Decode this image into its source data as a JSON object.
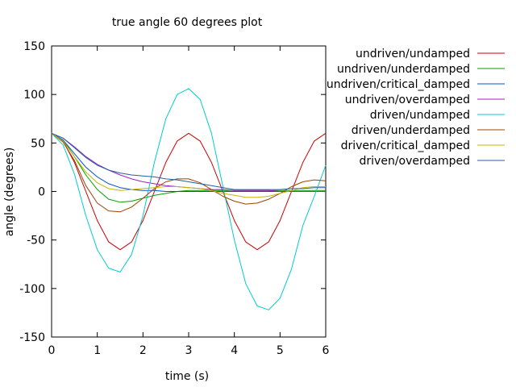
{
  "chart_data": {
    "type": "line",
    "title": "true angle 60 degrees plot",
    "xlabel": "time (s)",
    "ylabel": "angle (degrees)",
    "xlim": [
      0,
      6
    ],
    "ylim": [
      -150,
      150
    ],
    "xticks": [
      0,
      1,
      2,
      3,
      4,
      5,
      6
    ],
    "yticks": [
      -150,
      -100,
      -50,
      0,
      50,
      100,
      150
    ],
    "grid": false,
    "legend_position": "right",
    "series": [
      {
        "name": "undriven/undamped",
        "color": "#cc0000",
        "x": [
          0,
          0.25,
          0.5,
          0.75,
          1,
          1.25,
          1.5,
          1.75,
          2,
          2.25,
          2.5,
          2.75,
          3,
          3.25,
          3.5,
          3.75,
          4,
          4.25,
          4.5,
          4.75,
          5,
          5.25,
          5.5,
          5.75,
          6
        ],
        "y": [
          60,
          52,
          30,
          0,
          -30,
          -52,
          -60,
          -52,
          -30,
          0,
          30,
          52,
          60,
          52,
          30,
          0,
          -30,
          -52,
          -60,
          -52,
          -30,
          0,
          30,
          52,
          60
        ]
      },
      {
        "name": "undriven/underdamped",
        "color": "#00a000",
        "x": [
          0,
          0.25,
          0.5,
          0.75,
          1,
          1.25,
          1.5,
          1.75,
          2,
          2.25,
          2.5,
          2.75,
          3,
          3.25,
          3.5,
          3.75,
          4,
          4.25,
          4.5,
          4.75,
          5,
          5.25,
          5.5,
          5.75,
          6
        ],
        "y": [
          60,
          53,
          36,
          17,
          2,
          -8,
          -11,
          -10,
          -7,
          -4,
          -2,
          0,
          1,
          1,
          1,
          1,
          1,
          1,
          1,
          1,
          1,
          1,
          1,
          1,
          1
        ]
      },
      {
        "name": "undriven/critical_damped",
        "color": "#0050cc",
        "x": [
          0,
          0.25,
          0.5,
          0.75,
          1,
          1.25,
          1.5,
          1.75,
          2,
          2.25,
          2.5,
          2.75,
          3,
          3.25,
          3.5,
          3.75,
          4,
          4.25,
          4.5,
          4.75,
          5,
          5.25,
          5.5,
          5.75,
          6
        ],
        "y": [
          60,
          53,
          39,
          25,
          15,
          8,
          4,
          2,
          1,
          1,
          0,
          0,
          0,
          0,
          0,
          0,
          0,
          0,
          0,
          0,
          0,
          0,
          0,
          0,
          0
        ]
      },
      {
        "name": "undriven/overdamped",
        "color": "#a020c0",
        "x": [
          0,
          0.25,
          0.5,
          0.75,
          1,
          1.25,
          1.5,
          1.75,
          2,
          2.25,
          2.5,
          2.75,
          3,
          3.25,
          3.5,
          3.75,
          4,
          4.25,
          4.5,
          4.75,
          5,
          5.25,
          5.5,
          5.75,
          6
        ],
        "y": [
          60,
          55,
          46,
          36,
          28,
          22,
          17,
          13,
          10,
          8,
          6,
          5,
          4,
          3,
          2,
          2,
          1,
          1,
          1,
          1,
          0,
          0,
          0,
          0,
          0
        ]
      },
      {
        "name": "driven/undamped",
        "color": "#00cccc",
        "x": [
          0,
          0.25,
          0.5,
          0.75,
          1,
          1.25,
          1.5,
          1.75,
          2,
          2.25,
          2.5,
          2.75,
          3,
          3.25,
          3.5,
          3.75,
          4,
          4.25,
          4.5,
          4.75,
          5,
          5.25,
          5.5,
          5.75,
          6
        ],
        "y": [
          60,
          48,
          18,
          -25,
          -60,
          -79,
          -83,
          -65,
          -25,
          30,
          75,
          100,
          106,
          95,
          60,
          5,
          -50,
          -95,
          -118,
          -122,
          -110,
          -80,
          -35,
          -5,
          27
        ]
      },
      {
        "name": "driven/underdamped",
        "color": "#a04000",
        "x": [
          0,
          0.25,
          0.5,
          0.75,
          1,
          1.25,
          1.5,
          1.75,
          2,
          2.25,
          2.5,
          2.75,
          3,
          3.25,
          3.5,
          3.75,
          4,
          4.25,
          4.5,
          4.75,
          5,
          5.25,
          5.5,
          5.75,
          6
        ],
        "y": [
          60,
          51,
          32,
          6,
          -12,
          -20,
          -21,
          -16,
          -7,
          3,
          10,
          13,
          13,
          9,
          2,
          -5,
          -10,
          -13,
          -12,
          -8,
          -2,
          5,
          10,
          12,
          11
        ]
      },
      {
        "name": "driven/critical_damped",
        "color": "#c8b400",
        "x": [
          0,
          0.25,
          0.5,
          0.75,
          1,
          1.25,
          1.5,
          1.75,
          2,
          2.25,
          2.5,
          2.75,
          3,
          3.25,
          3.5,
          3.75,
          4,
          4.25,
          4.5,
          4.75,
          5,
          5.25,
          5.5,
          5.75,
          6
        ],
        "y": [
          60,
          52,
          36,
          20,
          9,
          3,
          1,
          2,
          3,
          4,
          5,
          5,
          4,
          3,
          1,
          -2,
          -4,
          -6,
          -6,
          -5,
          -2,
          1,
          4,
          5,
          5
        ]
      },
      {
        "name": "driven/overdamped",
        "color": "#2060a0",
        "x": [
          0,
          0.25,
          0.5,
          0.75,
          1,
          1.25,
          1.5,
          1.75,
          2,
          2.25,
          2.5,
          2.75,
          3,
          3.25,
          3.5,
          3.75,
          4,
          4.25,
          4.5,
          4.75,
          5,
          5.25,
          5.5,
          5.75,
          6
        ],
        "y": [
          60,
          55,
          45,
          35,
          27,
          22,
          19,
          17,
          16,
          15,
          13,
          12,
          10,
          8,
          6,
          4,
          2,
          2,
          2,
          2,
          2,
          3,
          3,
          4,
          4
        ]
      }
    ]
  }
}
